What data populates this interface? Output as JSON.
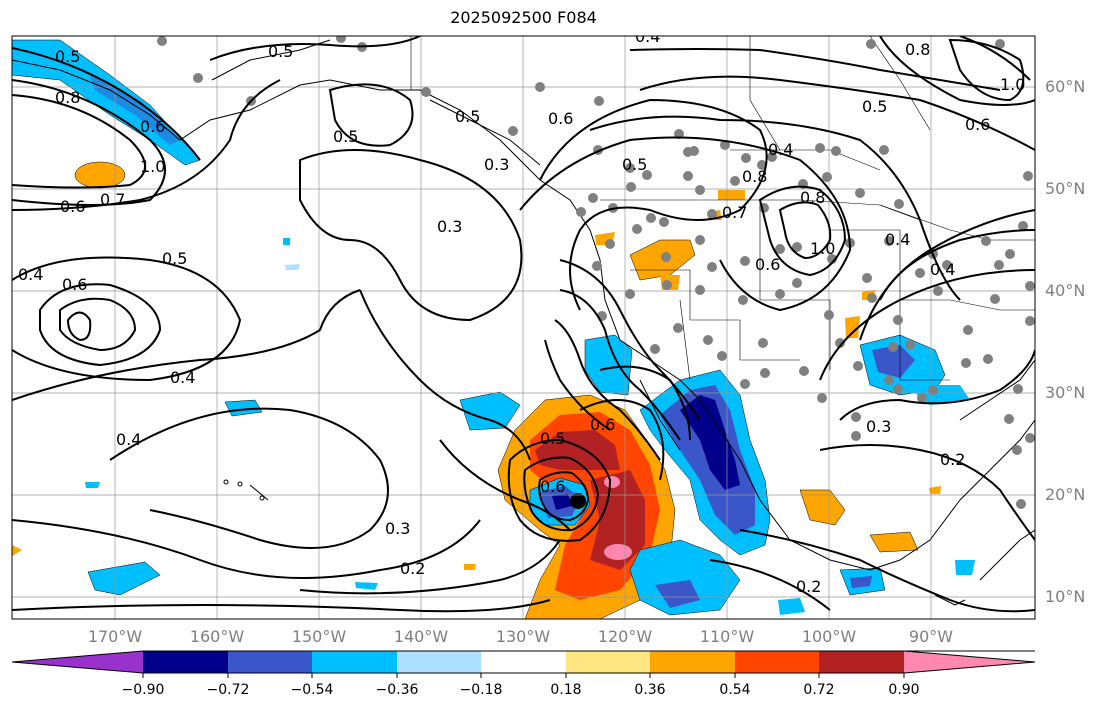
{
  "title": "2025092500 F084",
  "axes": {
    "lat_labels": [
      "60°N",
      "50°N",
      "40°N",
      "30°N",
      "20°N",
      "10°N"
    ],
    "lon_labels": [
      "170°W",
      "160°W",
      "150°W",
      "140°W",
      "130°W",
      "120°W",
      "110°W",
      "100°W",
      "90°W"
    ]
  },
  "contours": {
    "labels": [
      "0.5",
      "0.8",
      "0.6",
      "1.0",
      "0.7",
      "0.6",
      "0.4",
      "0.6",
      "0.5",
      "0.4",
      "0.4",
      "0.3",
      "0.5",
      "0.3",
      "0.3",
      "0.2",
      "0.5",
      "0.6",
      "0.6",
      "0.5",
      "0.4",
      "0.8",
      "0.8",
      "0.7",
      "1.0",
      "0.6",
      "0.5",
      "0.6",
      "1.0",
      "0.4",
      "0.4",
      "0.3",
      "0.2",
      "0.2",
      "0.6",
      "0.8",
      "0.5",
      "0.4",
      "0.5"
    ]
  },
  "colorbar": {
    "ticks": [
      "−0.90",
      "−0.72",
      "−0.54",
      "−0.36",
      "−0.18",
      "0.18",
      "0.36",
      "0.54",
      "0.72",
      "0.90"
    ],
    "colors": [
      "#9932cc",
      "#00008b",
      "#3a56c8",
      "#00bfff",
      "#aee1ff",
      "#ffffff",
      "#ffe680",
      "#ffa500",
      "#ff4500",
      "#b22222",
      "#ff88b0"
    ]
  }
}
